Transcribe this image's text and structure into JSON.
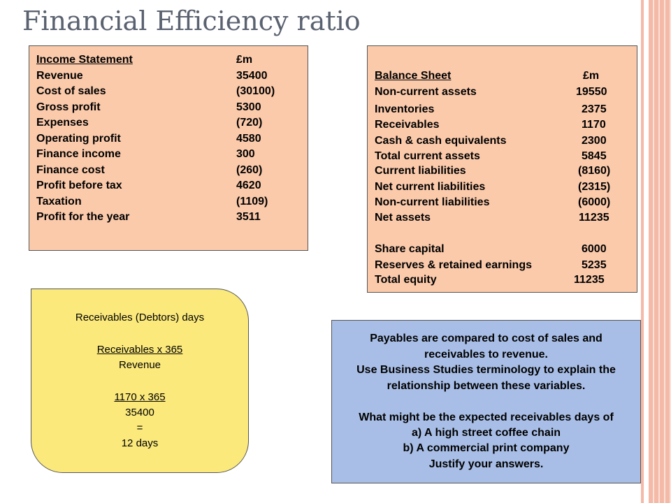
{
  "title": "Financial Efficiency ratio",
  "income_statement": {
    "header": {
      "label": "Income Statement",
      "value": "£m"
    },
    "rows": [
      {
        "label": "Revenue",
        "value": "35400"
      },
      {
        "label": "Cost of sales",
        "value": "(30100)"
      },
      {
        "label": "Gross profit",
        "value": "5300"
      },
      {
        "label": "Expenses",
        "value": "(720)"
      },
      {
        "label": "Operating profit",
        "value": "4580"
      },
      {
        "label": "Finance income",
        "value": "300"
      },
      {
        "label": "Finance cost",
        "value": "(260)"
      },
      {
        "label": "Profit before tax",
        "value": "4620"
      },
      {
        "label": "Taxation",
        "value": "(1109)"
      },
      {
        "label": "Profit for the year",
        "value": "3511"
      }
    ]
  },
  "balance_sheet": {
    "header": {
      "label": "Balance Sheet",
      "value": "£m"
    },
    "rows": [
      {
        "label": "Non-current assets",
        "value": "19550"
      },
      {
        "label": "Inventories",
        "value": "2375"
      },
      {
        "label": "Receivables",
        "value": "1170"
      },
      {
        "label": "Cash & cash equivalents",
        "value": "2300"
      },
      {
        "label": "Total current assets",
        "value": "5845"
      },
      {
        "label": "Current liabilities",
        "value": "(8160)"
      },
      {
        "label": "Net current liabilities",
        "value": "(2315)"
      },
      {
        "label": "Non-current liabilities",
        "value": "(6000)"
      },
      {
        "label": "Net assets",
        "value": "11235"
      },
      {
        "label": "Share capital",
        "value": "6000"
      },
      {
        "label": "Reserves & retained earnings",
        "value": "5235"
      },
      {
        "label": "Total equity",
        "value": "11235"
      }
    ]
  },
  "receivables_box": {
    "heading": "Receivables (Debtors) days",
    "formula_numerator": "Receivables x 365",
    "formula_denominator": "Revenue",
    "calc_numerator": "1170 x 365",
    "calc_denominator": "35400",
    "equals": "=",
    "result": "12 days"
  },
  "payables_box": {
    "lines": [
      "Payables are compared to cost of sales and",
      "receivables to revenue.",
      "Use Business Studies terminology to explain the",
      "relationship between these variables.",
      "",
      "What might be the expected receivables days of",
      "a)    A high street coffee chain",
      "b)    A commercial print company",
      "Justify your answers."
    ]
  }
}
